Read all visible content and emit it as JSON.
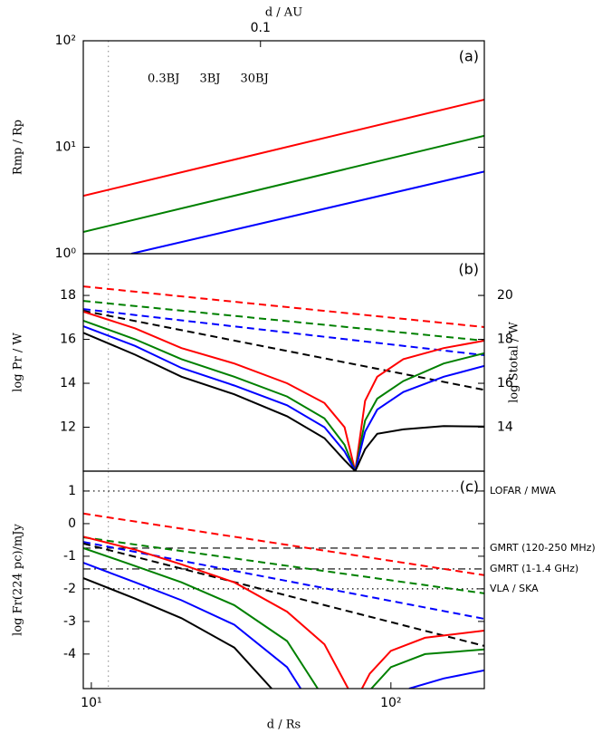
{
  "chart_data": [
    {
      "type": "line",
      "panel_label": "(a)",
      "ylabel": "Rmp / Rp",
      "x2label": "d / AU",
      "xlog": true,
      "ylog": true,
      "x2log": true,
      "xlim": [
        9.4,
        205
      ],
      "ylim": [
        1,
        100
      ],
      "x2lim": [
        0.0256,
        0.559
      ],
      "yticks": [
        {
          "value": 1,
          "label": "10⁰"
        },
        {
          "value": 10,
          "label": "10¹"
        },
        {
          "value": 100,
          "label": "10²"
        }
      ],
      "x2ticks": [
        0.1
      ],
      "vlines": [
        11.4
      ],
      "series": [
        {
          "name": "0.3BJ",
          "color": "#0000ff",
          "dash": "solid",
          "x": [
            13.6,
            205
          ],
          "values": [
            1,
            5.9
          ]
        },
        {
          "name": "3BJ",
          "color": "#008000",
          "dash": "solid",
          "x": [
            9.4,
            205
          ],
          "values": [
            1.6,
            12.8
          ]
        },
        {
          "name": "30BJ",
          "color": "#ff0000",
          "dash": "solid",
          "x": [
            9.4,
            205
          ],
          "values": [
            3.5,
            28
          ]
        }
      ]
    },
    {
      "type": "line",
      "panel_label": "(b)",
      "ylabel": "log Pr / W",
      "y2label": "log Stotal / W",
      "xlog": true,
      "xlim": [
        9.4,
        205
      ],
      "ylim": [
        10.0,
        19.9
      ],
      "y2lim": [
        12.0,
        21.9
      ],
      "yticks": [
        12,
        14,
        16,
        18
      ],
      "y2ticks": [
        14,
        16,
        18,
        20
      ],
      "vlines": [
        11.4
      ],
      "series": [
        {
          "color": "#ff0000",
          "dash": "dashed",
          "x": [
            9.4,
            205
          ],
          "values": [
            18.41,
            16.56
          ]
        },
        {
          "color": "#008000",
          "dash": "dashed",
          "x": [
            9.4,
            205
          ],
          "values": [
            17.75,
            15.94
          ]
        },
        {
          "color": "#0000ff",
          "dash": "dashed",
          "x": [
            9.4,
            205
          ],
          "values": [
            17.38,
            15.28
          ]
        },
        {
          "color": "#000000",
          "dash": "dashed",
          "x": [
            9.4,
            205
          ],
          "values": [
            17.3,
            13.7
          ]
        },
        {
          "color": "#ff0000",
          "dash": "solid",
          "x": [
            9.4,
            14,
            20,
            30,
            45,
            60,
            70,
            76,
            82,
            90,
            110,
            150,
            205
          ],
          "values": [
            17.26,
            16.5,
            15.6,
            14.9,
            14.0,
            13.1,
            12.0,
            10.0,
            13.2,
            14.3,
            15.1,
            15.6,
            15.94
          ]
        },
        {
          "color": "#008000",
          "dash": "solid",
          "x": [
            9.4,
            14,
            20,
            30,
            45,
            60,
            70,
            76,
            82,
            90,
            110,
            150,
            205
          ],
          "values": [
            16.85,
            16.0,
            15.1,
            14.3,
            13.4,
            12.4,
            11.2,
            10.0,
            12.3,
            13.3,
            14.1,
            14.9,
            15.37
          ]
        },
        {
          "color": "#0000ff",
          "dash": "solid",
          "x": [
            9.4,
            14,
            20,
            30,
            45,
            60,
            70,
            76,
            82,
            90,
            110,
            150,
            205
          ],
          "values": [
            16.6,
            15.7,
            14.7,
            13.9,
            13.0,
            12.0,
            10.9,
            10.0,
            11.8,
            12.8,
            13.6,
            14.3,
            14.79
          ]
        },
        {
          "color": "#000000",
          "dash": "solid",
          "x": [
            9.4,
            14,
            20,
            30,
            45,
            60,
            70,
            76,
            82,
            90,
            110,
            150,
            205
          ],
          "values": [
            16.3,
            15.3,
            14.3,
            13.5,
            12.5,
            11.5,
            10.5,
            10.0,
            11.0,
            11.7,
            11.9,
            12.05,
            12.03
          ]
        }
      ]
    },
    {
      "type": "line",
      "panel_label": "(c)",
      "ylabel": "log Fr(224 pc)/mJy",
      "xlabel": "d / Rs",
      "xlog": true,
      "xlim": [
        9.4,
        205
      ],
      "ylim": [
        -5.06,
        1.61
      ],
      "yticks": [
        -4,
        -3,
        -2,
        -1,
        0,
        1
      ],
      "xticks": [
        {
          "value": 10,
          "label": "10¹"
        },
        {
          "value": 100,
          "label": "10²"
        }
      ],
      "vlines": [
        11.4
      ],
      "hlines": [
        {
          "value": 1,
          "label": "LOFAR / MWA",
          "dash": "dotted"
        },
        {
          "value": -0.75,
          "label": "GMRT (120-250 MHz)",
          "dash": "dashed"
        },
        {
          "value": -1.39,
          "label": "GMRT (1-1.4 GHz)",
          "dash": "dashdot"
        },
        {
          "value": -2.0,
          "label": "VLA / SKA",
          "dash": "dotted"
        }
      ],
      "series": [
        {
          "color": "#ff0000",
          "dash": "dashed",
          "x": [
            9.4,
            205
          ],
          "values": [
            0.31,
            -1.58
          ]
        },
        {
          "color": "#008000",
          "dash": "dashed",
          "x": [
            9.4,
            205
          ],
          "values": [
            -0.42,
            -2.14
          ]
        },
        {
          "color": "#0000ff",
          "dash": "dashed",
          "x": [
            9.4,
            205
          ],
          "values": [
            -0.56,
            -2.92
          ]
        },
        {
          "color": "#000000",
          "dash": "dashed",
          "x": [
            9.4,
            205
          ],
          "values": [
            -0.61,
            -3.75
          ]
        },
        {
          "color": "#ff0000",
          "dash": "solid",
          "x": [
            9.4,
            14,
            20,
            30,
            45,
            60,
            72,
            76,
            80,
            85,
            100,
            130,
            205
          ],
          "values": [
            -0.4,
            -0.8,
            -1.25,
            -1.8,
            -2.7,
            -3.7,
            -5.06,
            null,
            -5.06,
            -4.6,
            -3.9,
            -3.5,
            -3.28
          ]
        },
        {
          "color": "#008000",
          "dash": "solid",
          "x": [
            9.4,
            14,
            20,
            30,
            45,
            57,
            70,
            86,
            100,
            130,
            205
          ],
          "values": [
            -0.75,
            -1.3,
            -1.8,
            -2.5,
            -3.6,
            -5.06,
            null,
            -5.06,
            -4.4,
            -4.0,
            -3.86
          ]
        },
        {
          "color": "#0000ff",
          "dash": "solid",
          "x": [
            9.4,
            14,
            20,
            30,
            45,
            50,
            80,
            115,
            150,
            205
          ],
          "values": [
            -1.2,
            -1.8,
            -2.35,
            -3.1,
            -4.4,
            -5.06,
            null,
            -5.06,
            -4.75,
            -4.5
          ]
        },
        {
          "color": "#000000",
          "dash": "solid",
          "x": [
            9.4,
            14,
            20,
            30,
            40
          ],
          "values": [
            -1.67,
            -2.3,
            -2.9,
            -3.8,
            -5.06
          ]
        }
      ]
    }
  ]
}
